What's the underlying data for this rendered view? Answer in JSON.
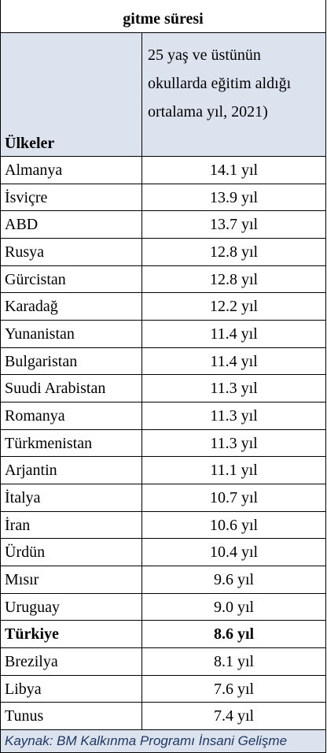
{
  "header": {
    "title": "gitme süresi"
  },
  "table": {
    "columns": [
      "Ülkeler",
      "25 yaş ve üstünün okullarda eğitim aldığı ortalama yıl, 2021)"
    ],
    "rows": [
      {
        "country": "Almanya",
        "value": "14.1 yıl"
      },
      {
        "country": "İsviçre",
        "value": "13.9 yıl"
      },
      {
        "country": "ABD",
        "value": "13.7 yıl"
      },
      {
        "country": "Rusya",
        "value": "12.8 yıl"
      },
      {
        "country": "Gürcistan",
        "value": "12.8 yıl"
      },
      {
        "country": "Karadağ",
        "value": "12.2 yıl"
      },
      {
        "country": "Yunanistan",
        "value": "11.4 yıl"
      },
      {
        "country": "Bulgaristan",
        "value": "11.4 yıl"
      },
      {
        "country": "Suudi Arabistan",
        "value": "11.3 yıl"
      },
      {
        "country": "Romanya",
        "value": "11.3 yıl"
      },
      {
        "country": "Türkmenistan",
        "value": "11.3 yıl"
      },
      {
        "country": "Arjantin",
        "value": "11.1 yıl"
      },
      {
        "country": "İtalya",
        "value": "10.7 yıl"
      },
      {
        "country": "İran",
        "value": "10.6 yıl"
      },
      {
        "country": "Ürdün",
        "value": "10.4 yıl"
      },
      {
        "country": "Mısır",
        "value": "9.6 yıl"
      },
      {
        "country": "Uruguay",
        "value": "9.0 yıl"
      },
      {
        "country": "Türkiye",
        "value": "8.6 yıl",
        "bold": true
      },
      {
        "country": "Brezilya",
        "value": "8.1 yıl"
      },
      {
        "country": "Libya",
        "value": "7.6 yıl"
      },
      {
        "country": "Tunus",
        "value": "7.4 yıl"
      }
    ]
  },
  "footer": {
    "source": "Kaynak: BM Kalkınma Programı İnsani Gelişme"
  }
}
